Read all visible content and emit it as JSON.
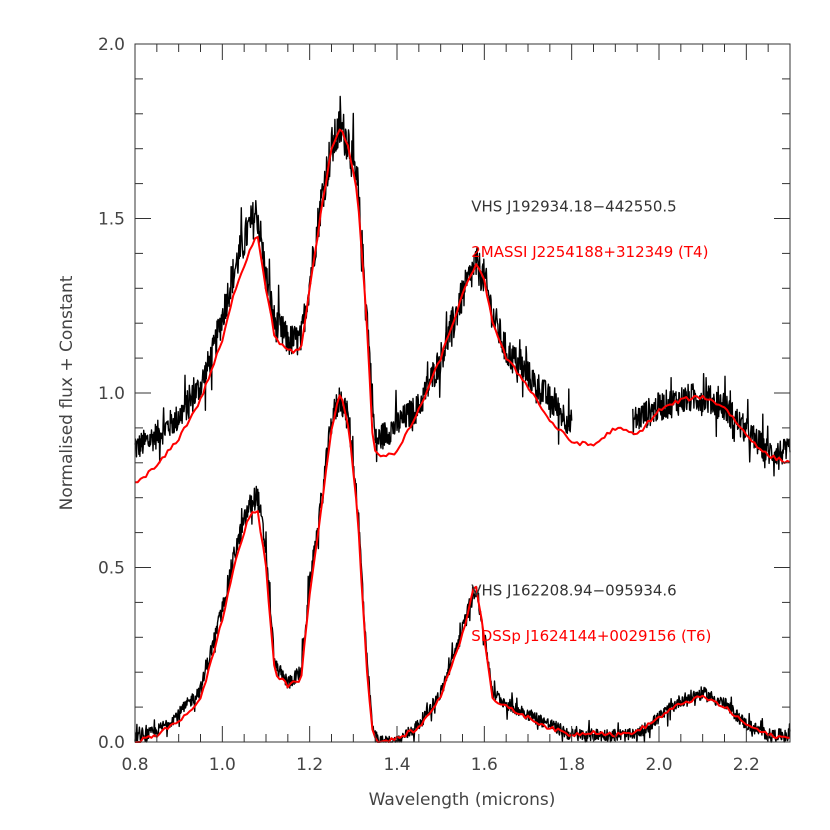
{
  "chart_data": {
    "type": "line",
    "xlabel": "Wavelength (microns)",
    "ylabel": "Normalised flux + Constant",
    "xlim": [
      0.8,
      2.3
    ],
    "ylim": [
      0.0,
      2.0
    ],
    "xticks": [
      "0.8",
      "1.0",
      "1.2",
      "1.4",
      "1.6",
      "1.8",
      "2.0",
      "2.2"
    ],
    "yticks": [
      "0.0",
      "0.5",
      "1.0",
      "1.5",
      "2.0"
    ],
    "grid": false,
    "colors": {
      "observed": "#000000",
      "template": "#ff0000"
    },
    "annotations": [
      {
        "text": "VHS J192934.18−442550.5",
        "x": 1.57,
        "y": 1.52,
        "color": "#333333"
      },
      {
        "text": "2MASSI J2254188+312349 (T4)",
        "x": 1.57,
        "y": 1.39,
        "color": "#ff0000"
      },
      {
        "text": "VHS J162208.94−095934.6",
        "x": 1.57,
        "y": 0.42,
        "color": "#333333"
      },
      {
        "text": "SDSSp J1624144+0029156 (T6)",
        "x": 1.57,
        "y": 0.29,
        "color": "#ff0000"
      }
    ],
    "series": [
      {
        "color": "#000000",
        "style": "noisy",
        "x": [
          0.8,
          0.85,
          0.9,
          0.95,
          0.98,
          1.0,
          1.02,
          1.04,
          1.06,
          1.08,
          1.1,
          1.12,
          1.15,
          1.18,
          1.2,
          1.23,
          1.25,
          1.27,
          1.29,
          1.31,
          1.33,
          1.35,
          1.45,
          1.5,
          1.55,
          1.58,
          1.6,
          1.62,
          1.65,
          1.7,
          1.75,
          1.8
        ],
        "y": [
          0.84,
          0.88,
          0.93,
          1.02,
          1.12,
          1.22,
          1.32,
          1.4,
          1.47,
          1.52,
          1.33,
          1.2,
          1.15,
          1.15,
          1.32,
          1.58,
          1.7,
          1.76,
          1.72,
          1.58,
          1.25,
          0.86,
          0.96,
          1.1,
          1.28,
          1.37,
          1.33,
          1.22,
          1.12,
          1.05,
          0.98,
          0.91
        ]
      },
      {
        "color": "#000000",
        "style": "noisy",
        "x": [
          1.94,
          2.0,
          2.05,
          2.1,
          2.15,
          2.2,
          2.25,
          2.3
        ],
        "y": [
          0.92,
          0.96,
          0.98,
          0.99,
          0.96,
          0.89,
          0.83,
          0.83
        ]
      },
      {
        "color": "#ff0000",
        "style": "smooth",
        "x": [
          0.8,
          0.85,
          0.9,
          0.95,
          1.0,
          1.03,
          1.06,
          1.08,
          1.1,
          1.12,
          1.15,
          1.18,
          1.2,
          1.23,
          1.25,
          1.27,
          1.29,
          1.31,
          1.33,
          1.345,
          1.36,
          1.4,
          1.45,
          1.5,
          1.55,
          1.58,
          1.6,
          1.62,
          1.65,
          1.7,
          1.75,
          1.8,
          1.85,
          1.9,
          1.95,
          2.0,
          2.05,
          2.1,
          2.15,
          2.2,
          2.25,
          2.3
        ],
        "y": [
          0.74,
          0.79,
          0.87,
          0.98,
          1.15,
          1.3,
          1.4,
          1.46,
          1.3,
          1.16,
          1.12,
          1.12,
          1.3,
          1.55,
          1.7,
          1.76,
          1.7,
          1.56,
          1.22,
          0.85,
          0.82,
          0.83,
          0.95,
          1.1,
          1.28,
          1.37,
          1.32,
          1.2,
          1.1,
          1.02,
          0.92,
          0.86,
          0.85,
          0.9,
          0.88,
          0.95,
          0.98,
          0.99,
          0.96,
          0.88,
          0.82,
          0.8
        ]
      },
      {
        "color": "#000000",
        "style": "noisy",
        "x": [
          0.8,
          0.85,
          0.9,
          0.95,
          1.0,
          1.03,
          1.06,
          1.08,
          1.1,
          1.12,
          1.15,
          1.18,
          1.2,
          1.23,
          1.25,
          1.27,
          1.29,
          1.31,
          1.33,
          1.345,
          1.36,
          1.4,
          1.45,
          1.5,
          1.55,
          1.58,
          1.6,
          1.62,
          1.65,
          1.7,
          1.75,
          1.8,
          1.85,
          1.9,
          1.95,
          2.0,
          2.05,
          2.1,
          2.15,
          2.2,
          2.25,
          2.3
        ],
        "y": [
          0.01,
          0.03,
          0.08,
          0.15,
          0.38,
          0.55,
          0.67,
          0.71,
          0.55,
          0.22,
          0.17,
          0.2,
          0.45,
          0.72,
          0.92,
          0.99,
          0.92,
          0.68,
          0.25,
          0.03,
          0.0,
          0.0,
          0.05,
          0.14,
          0.32,
          0.45,
          0.3,
          0.14,
          0.11,
          0.08,
          0.05,
          0.02,
          0.02,
          0.02,
          0.02,
          0.07,
          0.12,
          0.14,
          0.11,
          0.05,
          0.02,
          0.02
        ]
      },
      {
        "color": "#ff0000",
        "style": "smooth",
        "x": [
          0.8,
          0.85,
          0.9,
          0.95,
          1.0,
          1.03,
          1.06,
          1.08,
          1.1,
          1.12,
          1.15,
          1.18,
          1.2,
          1.23,
          1.25,
          1.27,
          1.29,
          1.31,
          1.33,
          1.345,
          1.36,
          1.4,
          1.45,
          1.5,
          1.55,
          1.58,
          1.6,
          1.62,
          1.65,
          1.7,
          1.75,
          1.8,
          1.85,
          1.9,
          1.95,
          2.0,
          2.05,
          2.1,
          2.15,
          2.2,
          2.25,
          2.3
        ],
        "y": [
          0.0,
          0.02,
          0.06,
          0.12,
          0.35,
          0.52,
          0.64,
          0.67,
          0.5,
          0.2,
          0.16,
          0.18,
          0.42,
          0.7,
          0.9,
          1.0,
          0.9,
          0.65,
          0.22,
          0.02,
          0.0,
          0.01,
          0.04,
          0.13,
          0.31,
          0.46,
          0.3,
          0.12,
          0.1,
          0.07,
          0.04,
          0.02,
          0.03,
          0.02,
          0.03,
          0.07,
          0.11,
          0.13,
          0.1,
          0.05,
          0.02,
          0.01
        ]
      }
    ]
  }
}
